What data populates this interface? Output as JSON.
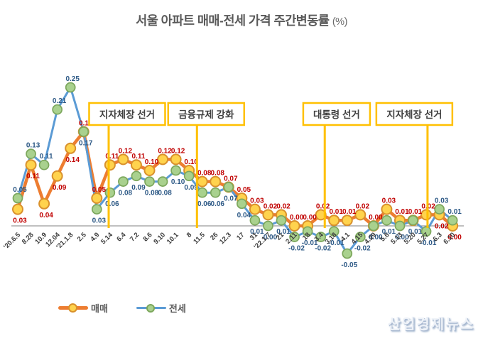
{
  "title": {
    "main": "서울 아파트 매매-전세 가격 주간변동률",
    "unit": "(%)"
  },
  "watermark": "산업경제뉴스",
  "chart_data": {
    "type": "line",
    "categories": [
      "'20.6.5",
      "8.28",
      "10.9",
      "12.04",
      "'21.1.8",
      "2.5",
      "4.9",
      "5.14",
      "6.4",
      "7.2",
      "8.6",
      "9.10",
      "10.1",
      "8",
      "11.5",
      "26",
      "12.3",
      "17",
      "31",
      "'22.1.7",
      "21",
      "2.11",
      "18",
      "3.4",
      "3.18",
      "4.1",
      "4.15",
      "4.29",
      "5.6",
      "5.13",
      "5.20",
      "5.27",
      "6.3",
      "6.10"
    ],
    "series": [
      {
        "name": "매매",
        "color": "#ED7D31",
        "marker_fill": "#FFD34D",
        "marker_stroke": "#D9912C",
        "label_color": "#C00000",
        "values": [
          0.03,
          0.11,
          0.04,
          0.09,
          0.14,
          0.17,
          0.05,
          0.11,
          0.12,
          0.11,
          0.1,
          0.12,
          0.12,
          0.1,
          0.08,
          0.08,
          0.07,
          0.05,
          0.03,
          0.02,
          0.02,
          0.0,
          0.0,
          0.02,
          0.01,
          0.01,
          0.02,
          0.0,
          0.03,
          0.01,
          0.01,
          0.02,
          0.02,
          0.0
        ]
      },
      {
        "name": "전세",
        "color": "#5B9BD5",
        "marker_fill": "#A9D18E",
        "marker_stroke": "#7CA75C",
        "label_color": "#2D5986",
        "values": [
          0.05,
          0.13,
          0.11,
          0.21,
          0.25,
          0.17,
          0.03,
          0.06,
          0.08,
          0.09,
          0.08,
          0.08,
          0.1,
          0.09,
          0.06,
          0.06,
          0.07,
          0.04,
          0.01,
          0.0,
          0.01,
          -0.02,
          -0.01,
          -0.02,
          -0.01,
          -0.05,
          -0.02,
          0.0,
          0.01,
          0.0,
          0.01,
          -0.01,
          0.03,
          0.01
        ]
      }
    ],
    "annotations": [
      {
        "label": "지자체장 선거",
        "line_index": 6.9,
        "box_center_index": 8.3
      },
      {
        "label": "금융규제 강화",
        "line_index": 13.6,
        "box_center_index": 14.3
      },
      {
        "label": "대통령 선거",
        "line_index": 23.3,
        "box_center_index": 24.2
      },
      {
        "label": "지자체장 선거",
        "line_index": 31.1,
        "box_center_index": 30.1
      }
    ],
    "annotation_color": "#FFC000",
    "axis_color": "#808080",
    "tick_label_color": "#3b3b3b",
    "ylim": [
      -0.07,
      0.28
    ],
    "grid": false,
    "legend_position": "bottom-left"
  }
}
